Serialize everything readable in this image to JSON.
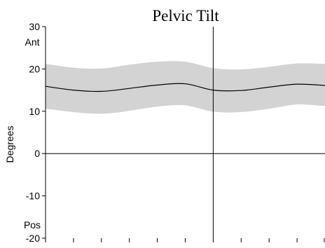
{
  "chart_data": {
    "type": "area",
    "title": "Pelvic Tilt",
    "xlabel": "",
    "ylabel": "Degrees",
    "ylim": [
      -20,
      30
    ],
    "xlim": [
      0,
      100
    ],
    "yticks": [
      {
        "value": 30,
        "label": "30"
      },
      {
        "value": 20,
        "label": "20"
      },
      {
        "value": 10,
        "label": "10"
      },
      {
        "value": 0,
        "label": "0"
      },
      {
        "value": -10,
        "label": "-10"
      },
      {
        "value": -20,
        "label": "-20"
      }
    ],
    "direction_labels": {
      "top": "Ant",
      "bottom": "Pos"
    },
    "x_minor_ticks": [
      0,
      10,
      20,
      30,
      40,
      50,
      60,
      70,
      80,
      90,
      100
    ],
    "reference_lines": {
      "horizontal_y": 0,
      "vertical_x": 60
    },
    "series": [
      {
        "x": [
          0,
          10,
          20,
          30,
          40,
          50,
          60,
          70,
          80,
          90,
          100
        ],
        "mean": [
          15.9,
          15.0,
          14.7,
          15.4,
          16.2,
          16.5,
          15.0,
          14.9,
          15.7,
          16.4,
          16.1
        ],
        "upper": [
          21.2,
          20.3,
          20.1,
          21.0,
          21.7,
          21.7,
          20.2,
          19.9,
          20.5,
          21.3,
          21.2
        ],
        "lower": [
          10.6,
          9.8,
          9.4,
          10.1,
          11.1,
          11.4,
          9.9,
          9.8,
          10.6,
          11.6,
          11.2
        ]
      }
    ],
    "colors": {
      "band": "#d3d3d3",
      "line": "#000000",
      "axis": "#000000"
    }
  }
}
